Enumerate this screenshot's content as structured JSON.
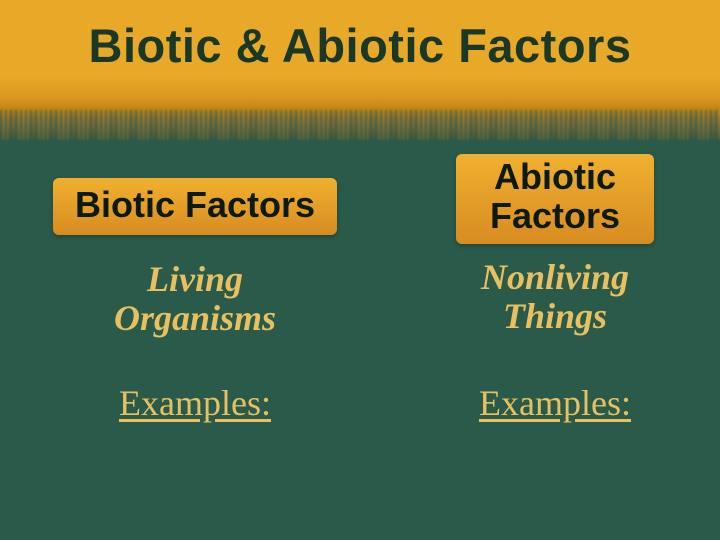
{
  "slide": {
    "title": "Biotic & Abiotic Factors",
    "background_color": "#2a5a4a",
    "header_gradient": [
      "#e8a828",
      "#d89820",
      "#3a5540"
    ],
    "title_color": "#1a3828",
    "title_fontsize": 47,
    "subtitle_color": "#e8c060",
    "subtitle_fontsize": 36,
    "pill_bg": [
      "#f0b030",
      "#d88c20"
    ],
    "pill_text_color": "#0c1a14",
    "pill_fontsize": 36,
    "columns": {
      "left": {
        "heading": "Biotic Factors",
        "subtitle_line1": "Living",
        "subtitle_line2": "Organisms",
        "examples_label": "Examples:"
      },
      "right": {
        "heading_line1": "Abiotic",
        "heading_line2": "Factors",
        "subtitle_line1": "Nonliving",
        "subtitle_line2": "Things",
        "examples_label": "Examples:"
      }
    }
  }
}
